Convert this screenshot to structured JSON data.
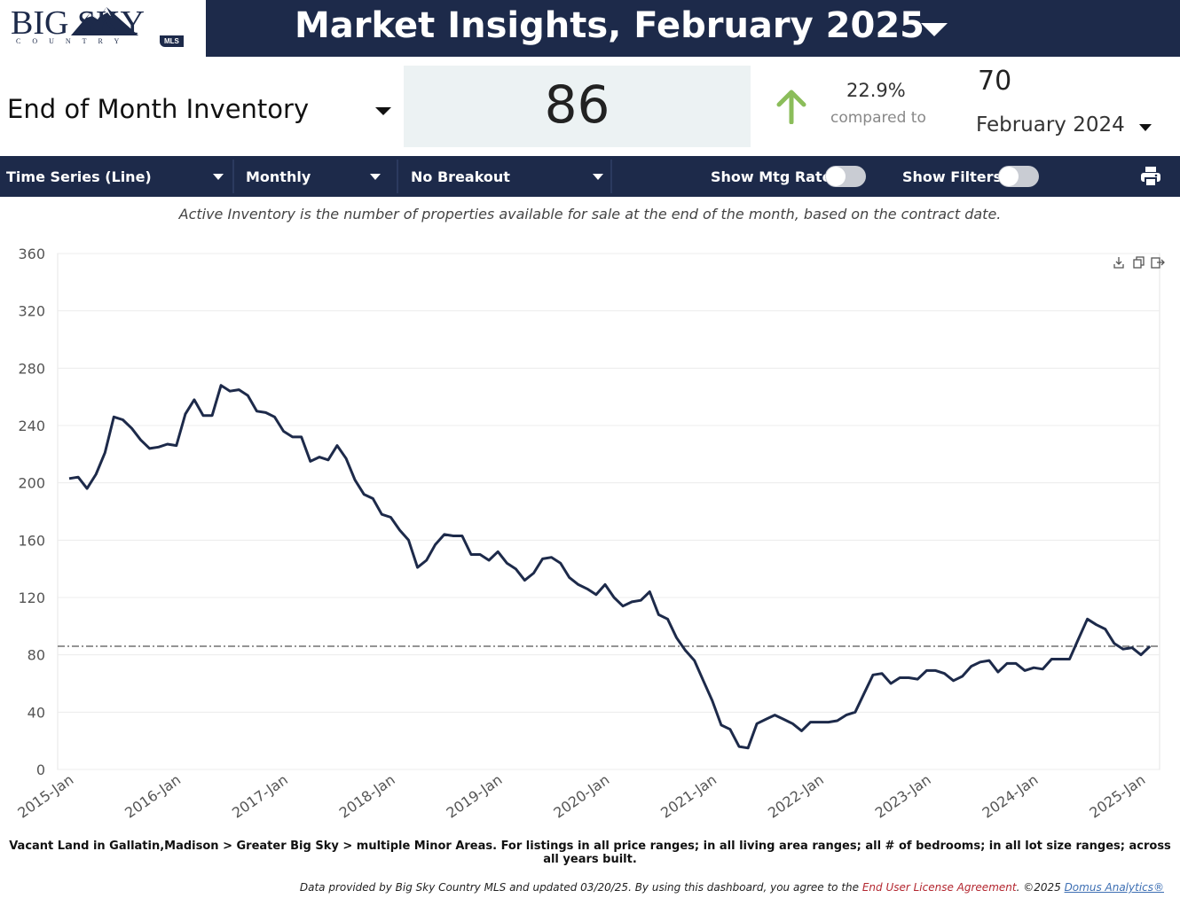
{
  "header": {
    "logo_text": "BIG SKY",
    "logo_sub": "COUNTRY",
    "logo_badge": "MLS",
    "title": "Market Insights, February 2025"
  },
  "metric": {
    "name": "End of Month Inventory",
    "value": "86",
    "change_pct": "22.9%",
    "compared_label": "compared to",
    "compare_value": "70",
    "compare_period": "February 2024"
  },
  "toolbar": {
    "chart_type": "Time Series (Line)",
    "interval": "Monthly",
    "breakout": "No Breakout",
    "mtg_rate_label": "Show Mtg Rate:",
    "filters_label": "Show Filters:"
  },
  "description": "Active Inventory is the number of properties available for sale at the end of the month, based on the contract date.",
  "footnote": "Vacant Land in Gallatin,Madison > Greater Big Sky > multiple Minor Areas. For listings in all price ranges; in all living area ranges; all # of bedrooms; in all lot size ranges; across all years built.",
  "credits": {
    "prefix": "Data provided by Big Sky Country MLS and updated 03/20/25.  By using this dashboard, you agree to the ",
    "eula": "End User License Agreement",
    "mid": ".  ©2025 ",
    "domus": "Domus Analytics®"
  },
  "colors": {
    "navy": "#1d2a4a",
    "value_box": "#ecf2f3",
    "up_arrow": "#8bbd5a",
    "line": "#1d2a4a"
  },
  "icons": [
    "mountain-logo-icon",
    "chevron-down-icon",
    "up-arrow-icon",
    "print-icon",
    "download-icon",
    "copy-icon",
    "export-icon"
  ],
  "chart_data": {
    "type": "line",
    "x_tick_labels": [
      "2015-Jan",
      "2016-Jan",
      "2017-Jan",
      "2018-Jan",
      "2019-Jan",
      "2020-Jan",
      "2021-Jan",
      "2022-Jan",
      "2023-Jan",
      "2024-Jan",
      "2025-Jan"
    ],
    "y_ticks": [
      0,
      40,
      80,
      120,
      160,
      200,
      240,
      280,
      320,
      360
    ],
    "ylim": [
      0,
      360
    ],
    "x_start": "2015-01",
    "x_end": "2025-02",
    "reference_line": 86,
    "grid": true,
    "values": [
      203,
      204,
      196,
      206,
      221,
      246,
      244,
      238,
      230,
      224,
      225,
      227,
      226,
      248,
      258,
      247,
      247,
      268,
      264,
      265,
      261,
      250,
      249,
      246,
      236,
      232,
      232,
      215,
      218,
      216,
      226,
      217,
      202,
      192,
      189,
      178,
      176,
      167,
      160,
      141,
      146,
      157,
      164,
      163,
      163,
      150,
      150,
      146,
      152,
      144,
      140,
      132,
      137,
      147,
      148,
      144,
      134,
      129,
      126,
      122,
      129,
      120,
      114,
      117,
      118,
      124,
      108,
      105,
      92,
      83,
      76,
      62,
      48,
      31,
      28,
      16,
      15,
      32,
      35,
      38,
      35,
      32,
      27,
      33,
      33,
      33,
      34,
      38,
      40,
      53,
      66,
      67,
      60,
      64,
      64,
      63,
      69,
      69,
      67,
      62,
      65,
      72,
      75,
      76,
      68,
      74,
      74,
      69,
      71,
      70,
      77,
      77,
      77,
      91,
      105,
      101,
      98,
      88,
      84,
      85,
      80,
      86
    ]
  }
}
